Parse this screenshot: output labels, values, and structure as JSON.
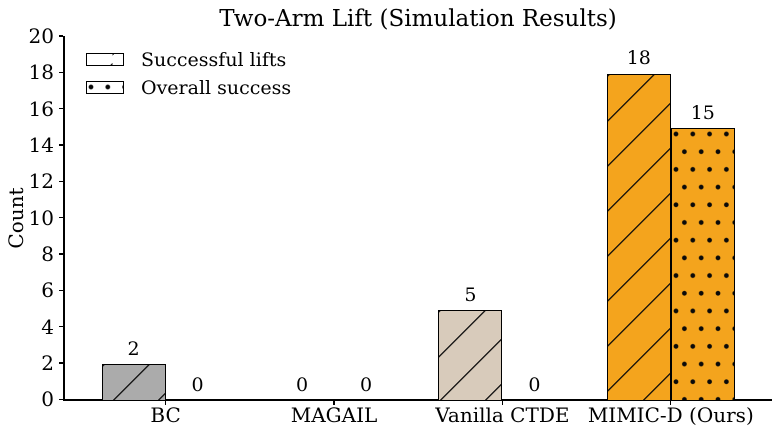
{
  "chart_data": {
    "type": "bar",
    "title": "Two-Arm Lift (Simulation Results)",
    "ylabel": "Count",
    "xlabel": "",
    "ylim": [
      0,
      20
    ],
    "yticks": [
      0,
      2,
      4,
      6,
      8,
      10,
      12,
      14,
      16,
      18,
      20
    ],
    "grid": false,
    "legend_position": "upper left",
    "categories": [
      "BC",
      "MAGAIL",
      "Vanilla CTDE",
      "MIMIC-D (Ours)"
    ],
    "series": [
      {
        "name": "Successful lifts",
        "hatch": "diagonal",
        "values": [
          2,
          0,
          5,
          18
        ]
      },
      {
        "name": "Overall success",
        "hatch": "dots",
        "values": [
          0,
          0,
          0,
          15
        ]
      }
    ],
    "bar_colors": [
      "#ABABAB",
      null,
      "#D8CBBB",
      "#F4A41D"
    ],
    "bar_value_labels": [
      [
        2,
        0,
        5,
        18
      ],
      [
        0,
        0,
        0,
        15
      ]
    ],
    "colors": {
      "edge": "#000000",
      "text": "#000000",
      "background": "#FFFFFF"
    }
  }
}
